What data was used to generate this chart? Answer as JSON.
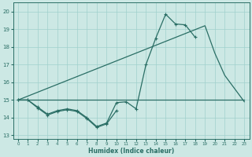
{
  "xlabel": "Humidex (Indice chaleur)",
  "bg_color": "#cce8e4",
  "line_color": "#2a6e65",
  "grid_color": "#a0d0cc",
  "xlim": [
    -0.5,
    23.5
  ],
  "ylim": [
    12.8,
    20.5
  ],
  "yticks": [
    13,
    14,
    15,
    16,
    17,
    18,
    19,
    20
  ],
  "xticks": [
    0,
    1,
    2,
    3,
    4,
    5,
    6,
    7,
    8,
    9,
    10,
    11,
    12,
    13,
    14,
    15,
    16,
    17,
    18,
    19,
    20,
    21,
    22,
    23
  ],
  "series1_x": [
    0,
    1,
    2,
    3,
    4,
    5,
    6,
    7,
    8,
    9,
    10,
    11,
    12,
    13,
    14,
    15,
    16,
    17,
    18
  ],
  "series1_y": [
    15.0,
    15.0,
    14.6,
    14.2,
    14.4,
    14.5,
    14.4,
    14.0,
    13.5,
    13.7,
    14.85,
    14.9,
    14.5,
    17.0,
    18.5,
    19.85,
    19.3,
    19.25,
    18.55
  ],
  "series2_x": [
    0,
    1,
    2,
    3,
    4,
    5,
    6,
    7,
    8,
    9,
    10
  ],
  "series2_y": [
    15.0,
    15.0,
    14.55,
    14.15,
    14.35,
    14.45,
    14.35,
    13.95,
    13.45,
    13.65,
    14.4
  ],
  "series3_x": [
    0,
    23
  ],
  "series3_y": [
    15.0,
    15.0
  ],
  "series4_x": [
    0,
    19,
    20,
    21,
    23
  ],
  "series4_y": [
    15.0,
    19.2,
    17.65,
    16.4,
    14.9
  ]
}
